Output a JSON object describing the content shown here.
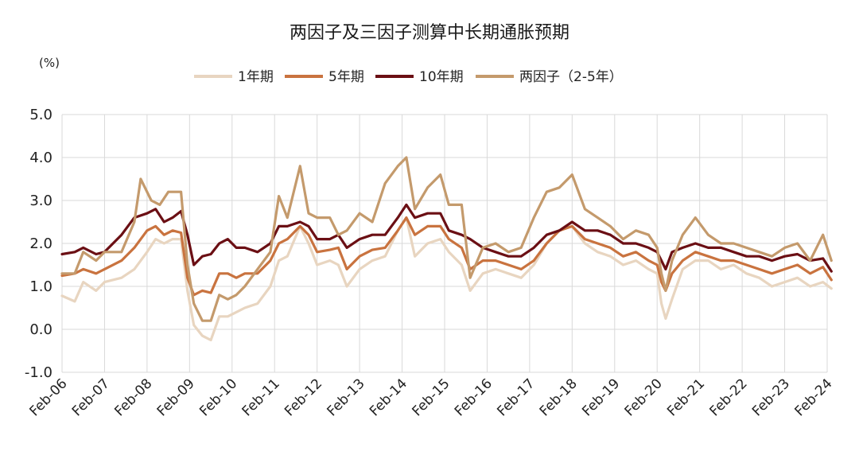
{
  "chart_data": {
    "type": "line",
    "title": "两因子及三因子测算中长期通胀预期",
    "ylabel": "(%)",
    "xlabel": "",
    "ylim": [
      -1.0,
      5.0
    ],
    "yticks": [
      "5.0",
      "4.0",
      "3.0",
      "2.0",
      "1.0",
      "0.0",
      "-1.0"
    ],
    "x_start_year": 2006,
    "x_end_year": 2024,
    "xticks": [
      "Feb-06",
      "Feb-07",
      "Feb-08",
      "Feb-09",
      "Feb-10",
      "Feb-11",
      "Feb-12",
      "Feb-13",
      "Feb-14",
      "Feb-15",
      "Feb-16",
      "Feb-17",
      "Feb-18",
      "Feb-19",
      "Feb-20",
      "Feb-21",
      "Feb-22",
      "Feb-23",
      "Feb-24"
    ],
    "legend_position": "top-center",
    "grid": true,
    "series": [
      {
        "name": "1年期",
        "color": "#e8d5c0",
        "points": [
          [
            2006.0,
            0.78
          ],
          [
            2006.3,
            0.65
          ],
          [
            2006.5,
            1.1
          ],
          [
            2006.8,
            0.9
          ],
          [
            2007.0,
            1.1
          ],
          [
            2007.4,
            1.2
          ],
          [
            2007.7,
            1.4
          ],
          [
            2008.0,
            1.8
          ],
          [
            2008.2,
            2.1
          ],
          [
            2008.4,
            2.0
          ],
          [
            2008.6,
            2.1
          ],
          [
            2008.8,
            2.1
          ],
          [
            2008.95,
            0.9
          ],
          [
            2009.1,
            0.1
          ],
          [
            2009.3,
            -0.15
          ],
          [
            2009.5,
            -0.25
          ],
          [
            2009.7,
            0.3
          ],
          [
            2009.9,
            0.3
          ],
          [
            2010.1,
            0.4
          ],
          [
            2010.3,
            0.5
          ],
          [
            2010.6,
            0.6
          ],
          [
            2010.9,
            1.0
          ],
          [
            2011.1,
            1.6
          ],
          [
            2011.3,
            1.7
          ],
          [
            2011.6,
            2.4
          ],
          [
            2011.8,
            2.0
          ],
          [
            2012.0,
            1.5
          ],
          [
            2012.3,
            1.6
          ],
          [
            2012.5,
            1.5
          ],
          [
            2012.7,
            1.0
          ],
          [
            2013.0,
            1.4
          ],
          [
            2013.3,
            1.6
          ],
          [
            2013.6,
            1.7
          ],
          [
            2013.9,
            2.3
          ],
          [
            2014.1,
            2.6
          ],
          [
            2014.3,
            1.7
          ],
          [
            2014.6,
            2.0
          ],
          [
            2014.9,
            2.1
          ],
          [
            2015.1,
            1.8
          ],
          [
            2015.4,
            1.5
          ],
          [
            2015.6,
            0.9
          ],
          [
            2015.9,
            1.3
          ],
          [
            2016.2,
            1.4
          ],
          [
            2016.5,
            1.3
          ],
          [
            2016.8,
            1.2
          ],
          [
            2017.1,
            1.5
          ],
          [
            2017.4,
            2.0
          ],
          [
            2017.7,
            2.3
          ],
          [
            2018.0,
            2.4
          ],
          [
            2018.3,
            2.0
          ],
          [
            2018.6,
            1.8
          ],
          [
            2018.9,
            1.7
          ],
          [
            2019.2,
            1.5
          ],
          [
            2019.5,
            1.6
          ],
          [
            2019.8,
            1.4
          ],
          [
            2020.0,
            1.3
          ],
          [
            2020.1,
            0.6
          ],
          [
            2020.2,
            0.25
          ],
          [
            2020.35,
            0.7
          ],
          [
            2020.6,
            1.4
          ],
          [
            2020.9,
            1.6
          ],
          [
            2021.2,
            1.6
          ],
          [
            2021.5,
            1.4
          ],
          [
            2021.8,
            1.5
          ],
          [
            2022.1,
            1.3
          ],
          [
            2022.4,
            1.2
          ],
          [
            2022.7,
            1.0
          ],
          [
            2023.0,
            1.1
          ],
          [
            2023.3,
            1.2
          ],
          [
            2023.6,
            1.0
          ],
          [
            2023.9,
            1.1
          ],
          [
            2024.1,
            0.95
          ]
        ]
      },
      {
        "name": "5年期",
        "color": "#c9733f",
        "points": [
          [
            2006.0,
            1.25
          ],
          [
            2006.3,
            1.3
          ],
          [
            2006.5,
            1.4
          ],
          [
            2006.8,
            1.3
          ],
          [
            2007.0,
            1.4
          ],
          [
            2007.4,
            1.6
          ],
          [
            2007.7,
            1.9
          ],
          [
            2008.0,
            2.3
          ],
          [
            2008.2,
            2.4
          ],
          [
            2008.4,
            2.2
          ],
          [
            2008.6,
            2.3
          ],
          [
            2008.8,
            2.25
          ],
          [
            2008.95,
            1.2
          ],
          [
            2009.1,
            0.8
          ],
          [
            2009.3,
            0.9
          ],
          [
            2009.5,
            0.85
          ],
          [
            2009.7,
            1.3
          ],
          [
            2009.9,
            1.3
          ],
          [
            2010.1,
            1.2
          ],
          [
            2010.3,
            1.3
          ],
          [
            2010.6,
            1.3
          ],
          [
            2010.9,
            1.6
          ],
          [
            2011.1,
            2.0
          ],
          [
            2011.3,
            2.1
          ],
          [
            2011.6,
            2.4
          ],
          [
            2011.8,
            2.2
          ],
          [
            2012.0,
            1.8
          ],
          [
            2012.3,
            1.85
          ],
          [
            2012.5,
            1.9
          ],
          [
            2012.7,
            1.4
          ],
          [
            2013.0,
            1.7
          ],
          [
            2013.3,
            1.85
          ],
          [
            2013.6,
            1.9
          ],
          [
            2013.9,
            2.3
          ],
          [
            2014.1,
            2.6
          ],
          [
            2014.3,
            2.2
          ],
          [
            2014.6,
            2.4
          ],
          [
            2014.9,
            2.4
          ],
          [
            2015.1,
            2.1
          ],
          [
            2015.4,
            1.9
          ],
          [
            2015.6,
            1.4
          ],
          [
            2015.9,
            1.6
          ],
          [
            2016.2,
            1.6
          ],
          [
            2016.5,
            1.5
          ],
          [
            2016.8,
            1.4
          ],
          [
            2017.1,
            1.6
          ],
          [
            2017.4,
            2.0
          ],
          [
            2017.7,
            2.3
          ],
          [
            2018.0,
            2.4
          ],
          [
            2018.3,
            2.1
          ],
          [
            2018.6,
            2.0
          ],
          [
            2018.9,
            1.9
          ],
          [
            2019.2,
            1.7
          ],
          [
            2019.5,
            1.8
          ],
          [
            2019.8,
            1.6
          ],
          [
            2020.0,
            1.5
          ],
          [
            2020.1,
            1.1
          ],
          [
            2020.2,
            0.9
          ],
          [
            2020.35,
            1.3
          ],
          [
            2020.6,
            1.6
          ],
          [
            2020.9,
            1.8
          ],
          [
            2021.2,
            1.7
          ],
          [
            2021.5,
            1.6
          ],
          [
            2021.8,
            1.6
          ],
          [
            2022.1,
            1.5
          ],
          [
            2022.4,
            1.4
          ],
          [
            2022.7,
            1.3
          ],
          [
            2023.0,
            1.4
          ],
          [
            2023.3,
            1.5
          ],
          [
            2023.6,
            1.3
          ],
          [
            2023.9,
            1.45
          ],
          [
            2024.1,
            1.15
          ]
        ]
      },
      {
        "name": "10年期",
        "color": "#6b0f14",
        "points": [
          [
            2006.0,
            1.75
          ],
          [
            2006.3,
            1.8
          ],
          [
            2006.5,
            1.9
          ],
          [
            2006.8,
            1.75
          ],
          [
            2007.0,
            1.8
          ],
          [
            2007.4,
            2.2
          ],
          [
            2007.7,
            2.6
          ],
          [
            2008.0,
            2.7
          ],
          [
            2008.2,
            2.8
          ],
          [
            2008.4,
            2.5
          ],
          [
            2008.6,
            2.6
          ],
          [
            2008.8,
            2.75
          ],
          [
            2008.95,
            2.2
          ],
          [
            2009.1,
            1.5
          ],
          [
            2009.3,
            1.7
          ],
          [
            2009.5,
            1.75
          ],
          [
            2009.7,
            2.0
          ],
          [
            2009.9,
            2.1
          ],
          [
            2010.1,
            1.9
          ],
          [
            2010.3,
            1.9
          ],
          [
            2010.6,
            1.8
          ],
          [
            2010.9,
            2.0
          ],
          [
            2011.1,
            2.4
          ],
          [
            2011.3,
            2.4
          ],
          [
            2011.6,
            2.5
          ],
          [
            2011.8,
            2.4
          ],
          [
            2012.0,
            2.1
          ],
          [
            2012.3,
            2.1
          ],
          [
            2012.5,
            2.2
          ],
          [
            2012.7,
            1.9
          ],
          [
            2013.0,
            2.1
          ],
          [
            2013.3,
            2.2
          ],
          [
            2013.6,
            2.2
          ],
          [
            2013.9,
            2.6
          ],
          [
            2014.1,
            2.9
          ],
          [
            2014.3,
            2.6
          ],
          [
            2014.6,
            2.7
          ],
          [
            2014.9,
            2.7
          ],
          [
            2015.1,
            2.3
          ],
          [
            2015.4,
            2.2
          ],
          [
            2015.6,
            2.1
          ],
          [
            2015.9,
            1.9
          ],
          [
            2016.2,
            1.8
          ],
          [
            2016.5,
            1.7
          ],
          [
            2016.8,
            1.7
          ],
          [
            2017.1,
            1.9
          ],
          [
            2017.4,
            2.2
          ],
          [
            2017.7,
            2.3
          ],
          [
            2018.0,
            2.5
          ],
          [
            2018.3,
            2.3
          ],
          [
            2018.6,
            2.3
          ],
          [
            2018.9,
            2.2
          ],
          [
            2019.2,
            2.0
          ],
          [
            2019.5,
            2.0
          ],
          [
            2019.8,
            1.9
          ],
          [
            2020.0,
            1.8
          ],
          [
            2020.1,
            1.6
          ],
          [
            2020.2,
            1.4
          ],
          [
            2020.35,
            1.8
          ],
          [
            2020.6,
            1.9
          ],
          [
            2020.9,
            2.0
          ],
          [
            2021.2,
            1.9
          ],
          [
            2021.5,
            1.9
          ],
          [
            2021.8,
            1.8
          ],
          [
            2022.1,
            1.7
          ],
          [
            2022.4,
            1.7
          ],
          [
            2022.7,
            1.6
          ],
          [
            2023.0,
            1.7
          ],
          [
            2023.3,
            1.75
          ],
          [
            2023.6,
            1.6
          ],
          [
            2023.9,
            1.65
          ],
          [
            2024.1,
            1.35
          ]
        ]
      },
      {
        "name": "两因子（2-5年）",
        "color": "#c49a6c",
        "points": [
          [
            2006.0,
            1.3
          ],
          [
            2006.3,
            1.3
          ],
          [
            2006.5,
            1.8
          ],
          [
            2006.8,
            1.6
          ],
          [
            2007.0,
            1.8
          ],
          [
            2007.4,
            1.8
          ],
          [
            2007.7,
            2.5
          ],
          [
            2007.85,
            3.5
          ],
          [
            2008.1,
            3.0
          ],
          [
            2008.3,
            2.9
          ],
          [
            2008.5,
            3.2
          ],
          [
            2008.8,
            3.2
          ],
          [
            2008.95,
            1.5
          ],
          [
            2009.1,
            0.6
          ],
          [
            2009.3,
            0.2
          ],
          [
            2009.5,
            0.2
          ],
          [
            2009.7,
            0.8
          ],
          [
            2009.9,
            0.7
          ],
          [
            2010.1,
            0.8
          ],
          [
            2010.3,
            1.0
          ],
          [
            2010.6,
            1.4
          ],
          [
            2010.9,
            1.8
          ],
          [
            2011.1,
            3.1
          ],
          [
            2011.3,
            2.6
          ],
          [
            2011.6,
            3.8
          ],
          [
            2011.8,
            2.7
          ],
          [
            2012.0,
            2.6
          ],
          [
            2012.3,
            2.6
          ],
          [
            2012.5,
            2.2
          ],
          [
            2012.7,
            2.3
          ],
          [
            2013.0,
            2.7
          ],
          [
            2013.3,
            2.5
          ],
          [
            2013.6,
            3.4
          ],
          [
            2013.9,
            3.8
          ],
          [
            2014.1,
            4.0
          ],
          [
            2014.3,
            2.8
          ],
          [
            2014.6,
            3.3
          ],
          [
            2014.9,
            3.6
          ],
          [
            2015.1,
            2.9
          ],
          [
            2015.4,
            2.9
          ],
          [
            2015.6,
            1.2
          ],
          [
            2015.9,
            1.9
          ],
          [
            2016.2,
            2.0
          ],
          [
            2016.5,
            1.8
          ],
          [
            2016.8,
            1.9
          ],
          [
            2017.1,
            2.6
          ],
          [
            2017.4,
            3.2
          ],
          [
            2017.7,
            3.3
          ],
          [
            2018.0,
            3.6
          ],
          [
            2018.3,
            2.8
          ],
          [
            2018.6,
            2.6
          ],
          [
            2018.9,
            2.4
          ],
          [
            2019.2,
            2.1
          ],
          [
            2019.5,
            2.3
          ],
          [
            2019.8,
            2.2
          ],
          [
            2020.0,
            1.9
          ],
          [
            2020.1,
            1.3
          ],
          [
            2020.2,
            0.9
          ],
          [
            2020.35,
            1.6
          ],
          [
            2020.6,
            2.2
          ],
          [
            2020.9,
            2.6
          ],
          [
            2021.2,
            2.2
          ],
          [
            2021.5,
            2.0
          ],
          [
            2021.8,
            2.0
          ],
          [
            2022.1,
            1.9
          ],
          [
            2022.4,
            1.8
          ],
          [
            2022.7,
            1.7
          ],
          [
            2023.0,
            1.9
          ],
          [
            2023.3,
            2.0
          ],
          [
            2023.6,
            1.6
          ],
          [
            2023.9,
            2.2
          ],
          [
            2024.1,
            1.6
          ]
        ]
      }
    ]
  }
}
